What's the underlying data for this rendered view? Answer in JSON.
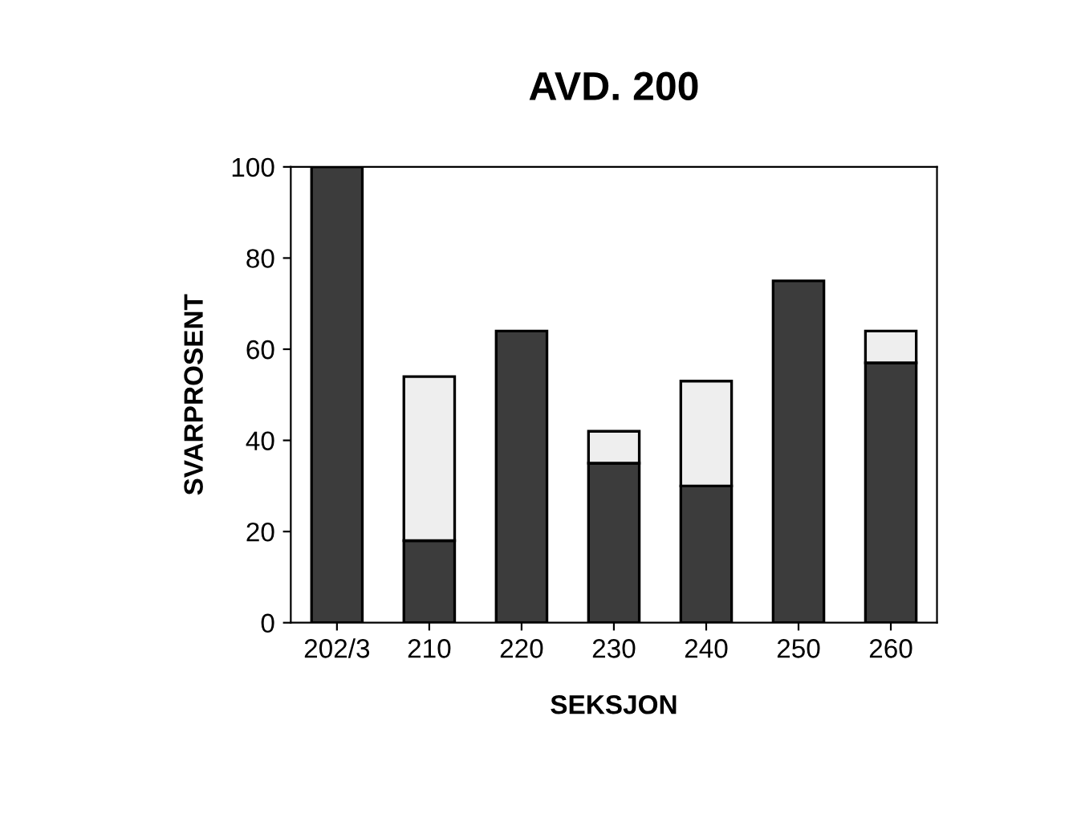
{
  "chart_data": {
    "type": "bar",
    "title": "AVD. 200",
    "xlabel": "SEKSJON",
    "ylabel": "SVARPROSENT",
    "categories": [
      "202/3",
      "210",
      "220",
      "230",
      "240",
      "250",
      "260"
    ],
    "stacked": true,
    "series": [
      {
        "color": "#3c3c3c",
        "values": [
          100,
          18,
          64,
          35,
          30,
          75,
          57
        ]
      },
      {
        "color": "#eeeeee",
        "values": [
          0,
          36,
          0,
          7,
          23,
          0,
          7
        ]
      }
    ],
    "ylim": [
      0,
      100
    ],
    "yticks": [
      0,
      20,
      40,
      60,
      80,
      100
    ],
    "grid": false
  }
}
